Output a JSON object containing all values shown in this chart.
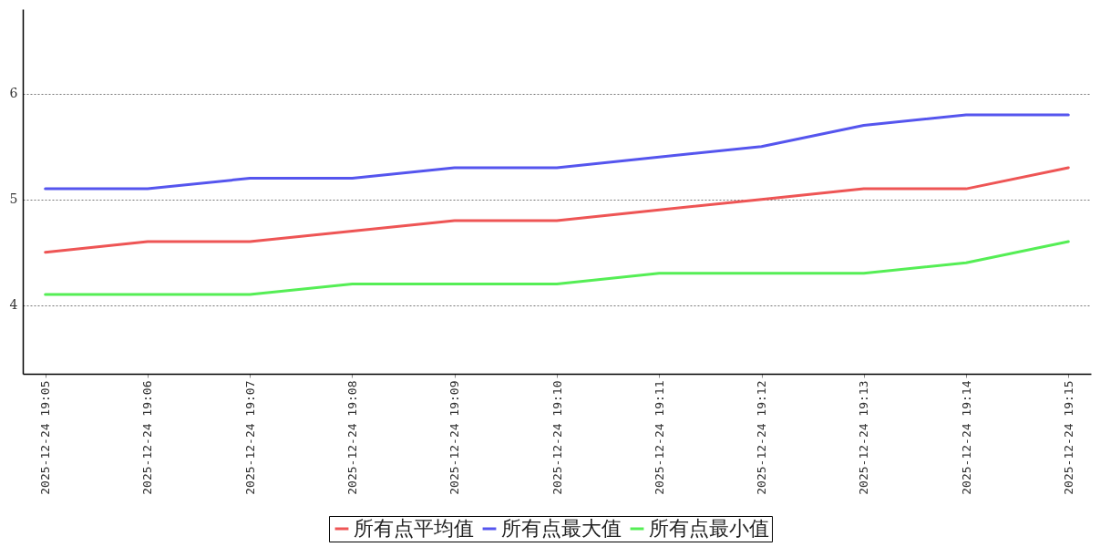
{
  "chart_data": {
    "type": "line",
    "categories": [
      "2025-12-24 19:05",
      "2025-12-24 19:06",
      "2025-12-24 19:07",
      "2025-12-24 19:08",
      "2025-12-24 19:09",
      "2025-12-24 19:10",
      "2025-12-24 19:11",
      "2025-12-24 19:12",
      "2025-12-24 19:13",
      "2025-12-24 19:14",
      "2025-12-24 19:15"
    ],
    "series": [
      {
        "name": "所有点平均值",
        "color": "#ee5555",
        "values": [
          4.5,
          4.6,
          4.6,
          4.7,
          4.8,
          4.8,
          4.9,
          5.0,
          5.1,
          5.1,
          5.3
        ]
      },
      {
        "name": "所有点最大值",
        "color": "#5555ee",
        "values": [
          5.1,
          5.1,
          5.2,
          5.2,
          5.3,
          5.3,
          5.4,
          5.5,
          5.7,
          5.8,
          5.8
        ]
      },
      {
        "name": "所有点最小值",
        "color": "#55ee55",
        "values": [
          4.1,
          4.1,
          4.1,
          4.2,
          4.2,
          4.2,
          4.3,
          4.3,
          4.3,
          4.4,
          4.6
        ]
      }
    ],
    "ylim": [
      3.35,
      6.8
    ],
    "yticks": [
      4,
      5,
      6
    ],
    "grid": "y",
    "legend": "bottom"
  }
}
